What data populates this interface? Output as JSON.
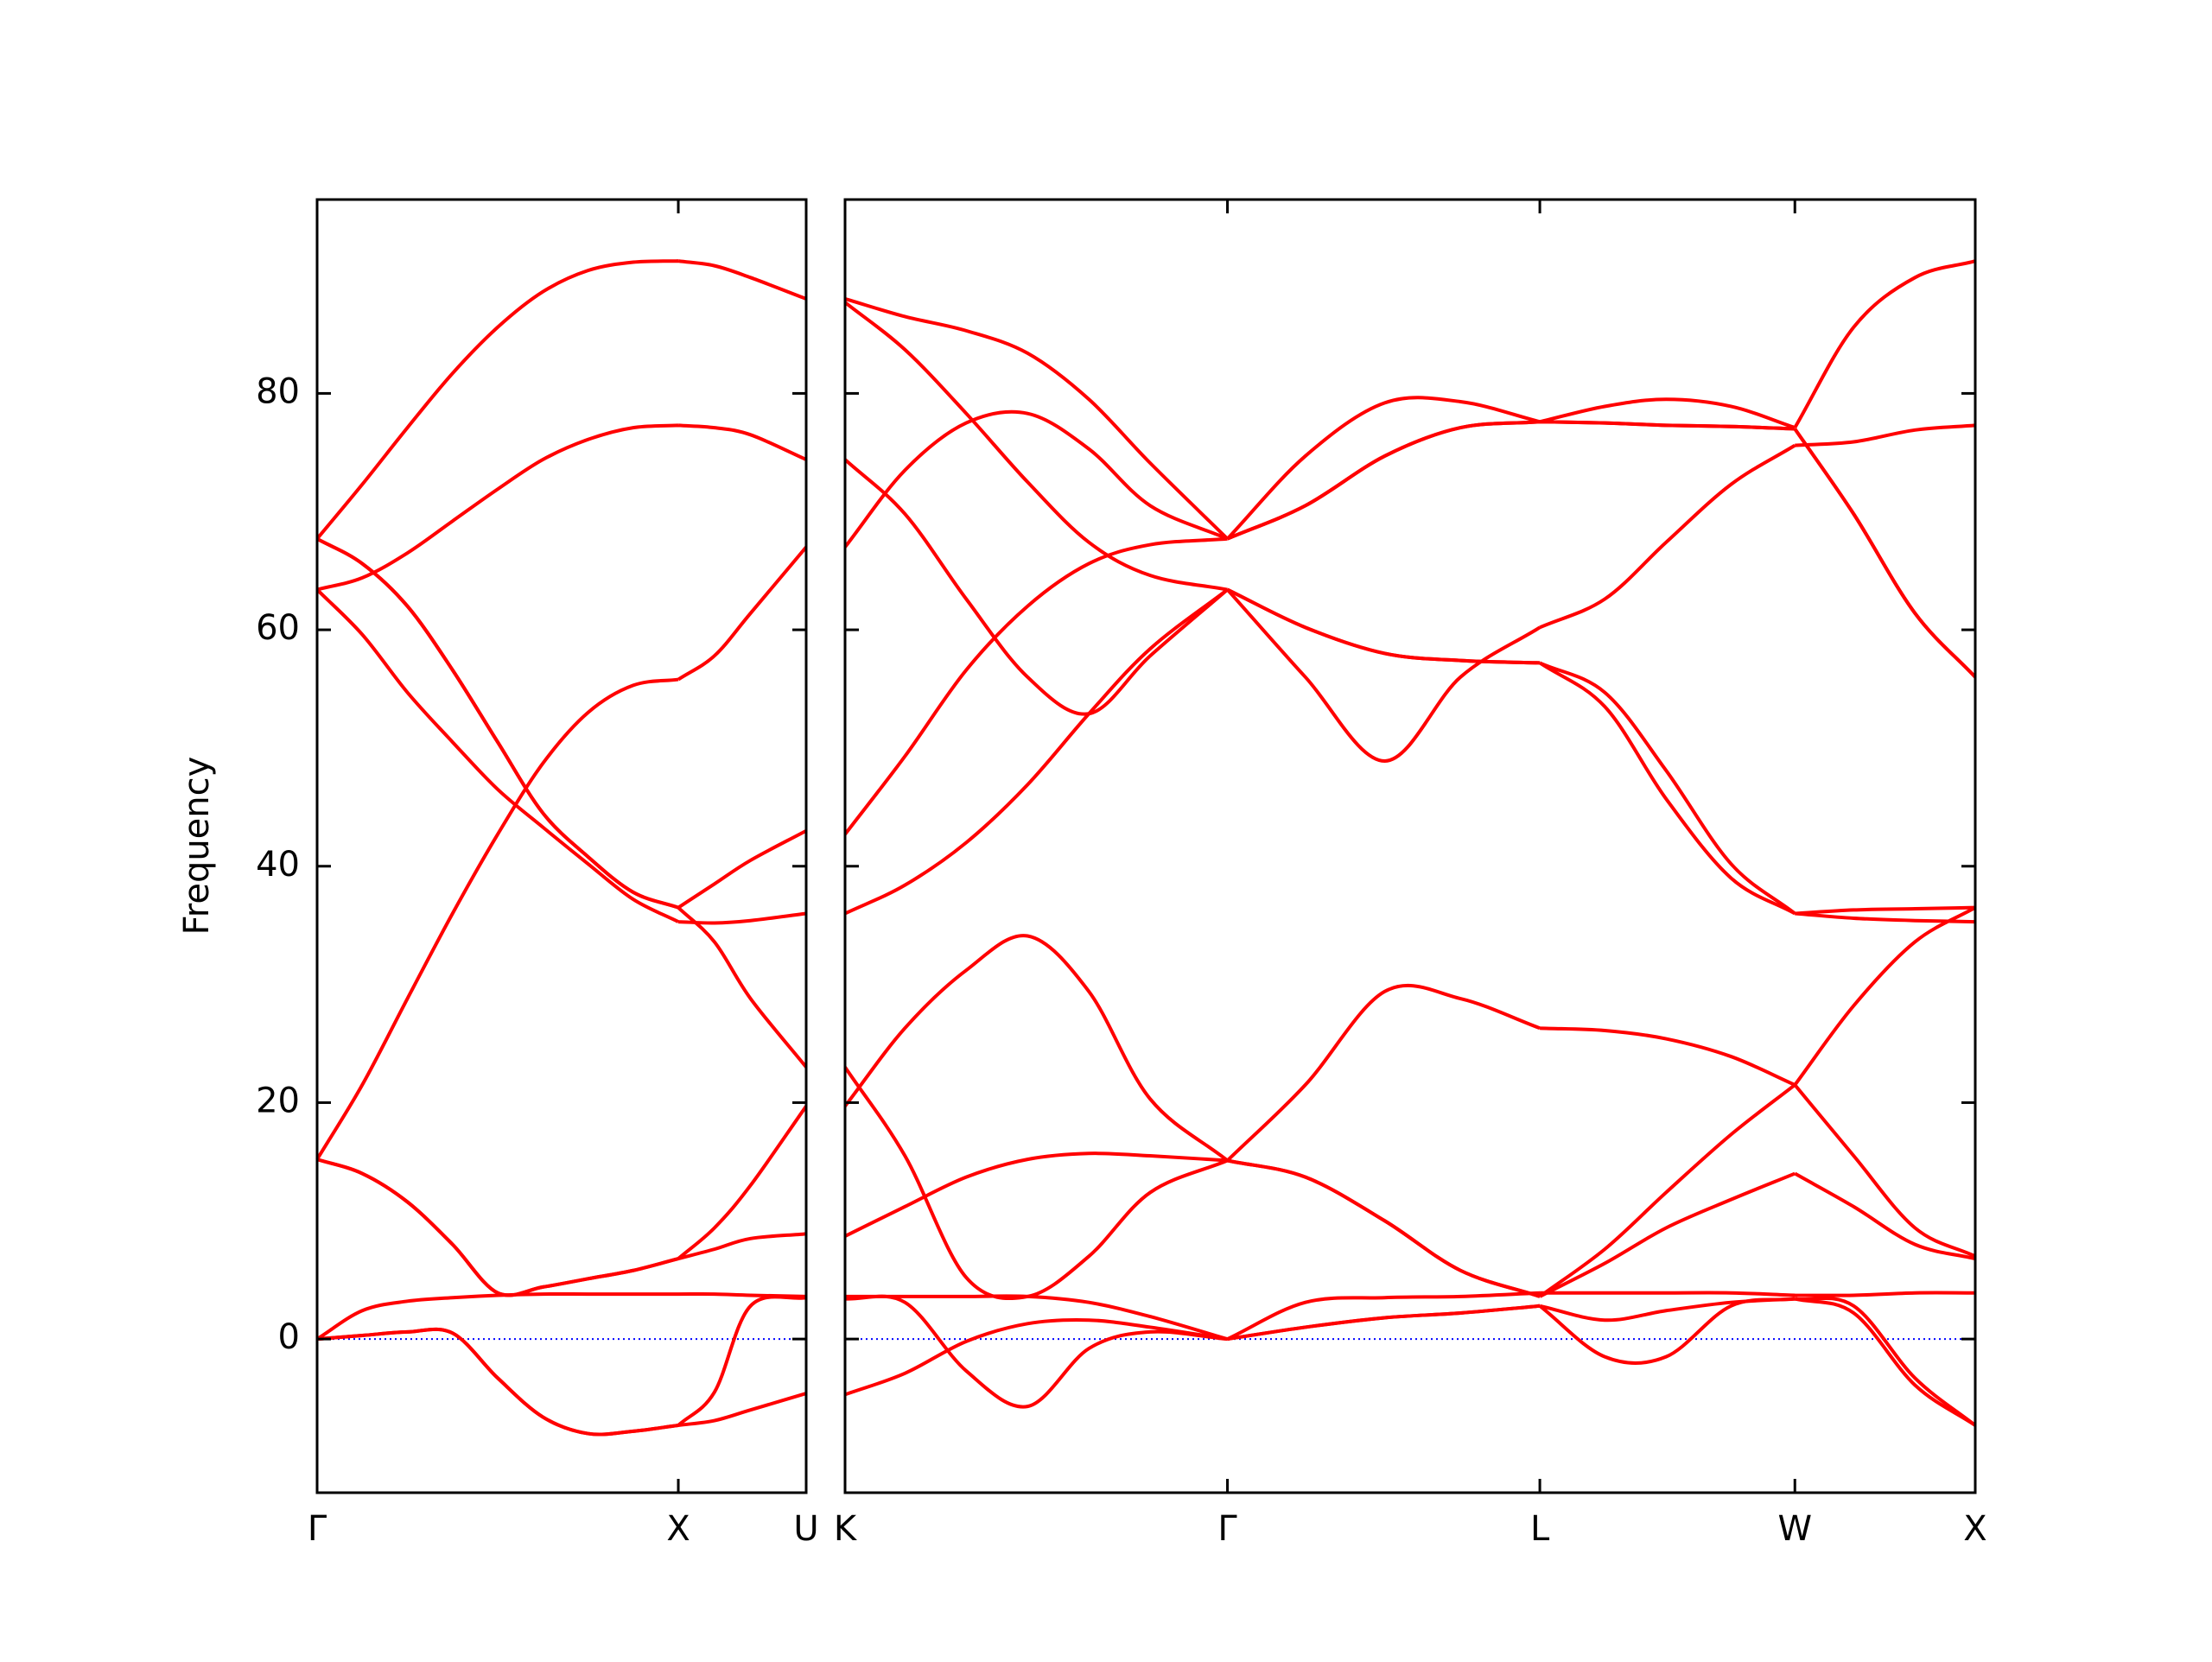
{
  "chart_data": [
    {
      "type": "line",
      "ylabel": "Frequency",
      "xlim": [
        0,
        1.354
      ],
      "ylim": [
        -13,
        96.4
      ],
      "yticks": [
        0,
        20,
        40,
        60,
        80
      ],
      "xticks": [
        {
          "value": 0,
          "label": "Γ"
        },
        {
          "value": 1,
          "label": "X"
        },
        {
          "value": 1.354,
          "label": "U"
        }
      ],
      "hline": {
        "value": 0,
        "color": "#0000ff"
      },
      "x": [
        0,
        0.125,
        0.25,
        0.375,
        0.5,
        0.625,
        0.75,
        0.875,
        1,
        1.1,
        1.2,
        1.354
      ],
      "series": [
        {
          "color": "#ff0000",
          "values": [
            0,
            0.3,
            0.6,
            0.5,
            -3.3,
            -6.6,
            -8,
            -7.8,
            -7.3,
            -6.9,
            -6,
            -4.6
          ]
        },
        {
          "color": "#ff0000",
          "values": [
            0,
            2.4,
            3.2,
            3.5,
            3.7,
            3.8,
            3.8,
            3.8,
            3.8,
            3.8,
            3.7,
            3.6
          ]
        },
        {
          "color": "#ff0000",
          "values": [
            0,
            0.3,
            0.6,
            0.5,
            -3.3,
            -6.6,
            -8,
            -7.8,
            -7.3,
            -4.5,
            2.8,
            3.5
          ]
        },
        {
          "color": "#ff0000",
          "values": [
            15.2,
            14,
            11.6,
            8,
            3.9,
            4.4,
            5.1,
            5.8,
            6.8,
            7.6,
            8.5,
            8.9
          ]
        },
        {
          "color": "#ff0000",
          "values": [
            15.2,
            14,
            11.6,
            8,
            3.9,
            4.4,
            5.1,
            5.8,
            6.8,
            9.4,
            13,
            19.7
          ]
        },
        {
          "color": "#ff0000",
          "values": [
            15.2,
            21.5,
            28.8,
            36,
            42.7,
            48.7,
            53,
            55.3,
            55.8,
            57.8,
            61.4,
            67
          ]
        },
        {
          "color": "#ff0000",
          "values": [
            67.7,
            65.6,
            62,
            56.6,
            50.5,
            44.5,
            40.8,
            37.8,
            36.5,
            33.6,
            28.8,
            23
          ]
        },
        {
          "color": "#ff0000",
          "values": [
            63.4,
            59.6,
            54.7,
            50.5,
            46.5,
            43.3,
            40.2,
            37.2,
            35.3,
            35.2,
            35.4,
            36
          ]
        },
        {
          "color": "#ff0000",
          "values": [
            67.7,
            65.6,
            62,
            56.6,
            50.5,
            44.5,
            40.8,
            37.8,
            36.5,
            38.5,
            40.5,
            43
          ]
        },
        {
          "color": "#ff0000",
          "values": [
            63.4,
            64.4,
            66.5,
            69.2,
            71.9,
            74.4,
            76.1,
            77.1,
            77.3,
            77.1,
            76.5,
            74.4
          ]
        },
        {
          "color": "#ff0000",
          "values": [
            67.7,
            72.3,
            77.1,
            81.7,
            85.6,
            88.6,
            90.4,
            91.1,
            91.2,
            90.8,
            89.8,
            88
          ]
        }
      ]
    },
    {
      "type": "line",
      "show_ytick_labels": false,
      "xlim": [
        1.354,
        4.487
      ],
      "ylim": [
        -13,
        96.4
      ],
      "yticks": [
        0,
        20,
        40,
        60,
        80
      ],
      "xticks": [
        {
          "value": 1.354,
          "label": "K"
        },
        {
          "value": 2.414,
          "label": "Γ"
        },
        {
          "value": 3.28,
          "label": "L"
        },
        {
          "value": 3.987,
          "label": "W"
        },
        {
          "value": 4.487,
          "label": "X"
        }
      ],
      "hline": {
        "value": 0,
        "color": "#0000ff"
      },
      "x": [
        1.354,
        1.52,
        1.69,
        1.86,
        2.03,
        2.2,
        2.414,
        2.63,
        2.85,
        3.06,
        3.28,
        3.46,
        3.63,
        3.81,
        3.987,
        4.15,
        4.32,
        4.487
      ],
      "series": [
        {
          "color": "#ff0000",
          "values": [
            88,
            86.5,
            85.3,
            83.4,
            79.5,
            74.1,
            67.7,
            74.7,
            79.2,
            79.3,
            77.6,
            78.9,
            79.5,
            78.9,
            77.1,
            85.6,
            89.8,
            91.2
          ]
        },
        {
          "color": "#ff0000",
          "values": [
            87.7,
            83.7,
            78.3,
            72.5,
            67.4,
            64.6,
            63.4,
            56,
            48.9,
            56,
            60.2,
            62.6,
            67.4,
            72.3,
            75.6,
            75.9,
            76.9,
            77.3
          ]
        },
        {
          "color": "#ff0000",
          "values": [
            74.4,
            69.8,
            62.6,
            56,
            52.9,
            57.8,
            63.4,
            60.2,
            58,
            57.4,
            57.2,
            53.5,
            45.7,
            39,
            36,
            36.3,
            36.4,
            36.5
          ]
        },
        {
          "color": "#ff0000",
          "values": [
            67,
            73.5,
            77.5,
            78.3,
            75.3,
            70.5,
            67.7,
            70.5,
            74.7,
            77.1,
            77.6,
            77.5,
            77.3,
            77.2,
            77,
            69.8,
            61.4,
            56
          ]
        },
        {
          "color": "#ff0000",
          "values": [
            42.7,
            49.3,
            56.6,
            62,
            65.6,
            67.2,
            67.7,
            70.5,
            74.7,
            77.1,
            77.6,
            77.5,
            77.3,
            77.2,
            77,
            69.8,
            61.4,
            56
          ]
        },
        {
          "color": "#ff0000",
          "values": [
            36,
            38.4,
            42,
            46.9,
            52.9,
            58.4,
            63.4,
            60.2,
            58,
            57.4,
            57.2,
            54.7,
            48.1,
            40.2,
            36,
            35.6,
            35.4,
            35.3
          ]
        },
        {
          "color": "#ff0000",
          "values": [
            19.7,
            26.3,
            31.2,
            34.1,
            29.4,
            20.3,
            15.1,
            21.5,
            29.4,
            28.8,
            26.3,
            26.1,
            25.4,
            23.9,
            21.5,
            15.5,
            9.4,
            7
          ]
        },
        {
          "color": "#ff0000",
          "values": [
            23,
            15.5,
            5.2,
            3.6,
            7,
            12.4,
            15.1,
            13.7,
            10,
            5.8,
            3.6,
            7.6,
            12.4,
            17.3,
            21.5,
            28.2,
            33.6,
            36.5
          ]
        },
        {
          "color": "#ff0000",
          "values": [
            8.7,
            11.2,
            13.7,
            15.2,
            15.7,
            15.5,
            15.1,
            13.7,
            10,
            5.8,
            3.6,
            6.4,
            9.4,
            11.8,
            14,
            11.2,
            8,
            6.8
          ]
        },
        {
          "color": "#ff0000",
          "values": [
            3.6,
            3.6,
            3.6,
            3.6,
            3.1,
            1.9,
            0,
            3.1,
            3.5,
            3.6,
            3.9,
            3.9,
            3.9,
            3.9,
            3.7,
            3.7,
            3.9,
            3.9
          ]
        },
        {
          "color": "#ff0000",
          "values": [
            3.4,
            3.1,
            -2.7,
            -5.7,
            -0.8,
            0.6,
            0,
            1,
            1.8,
            2.2,
            2.8,
            -1.5,
            -1.5,
            2.8,
            3.4,
            2.8,
            -3.3,
            -7.3
          ]
        },
        {
          "color": "#ff0000",
          "values": [
            -4.7,
            -2.9,
            -0.2,
            1.3,
            1.6,
            1,
            0,
            1,
            1.8,
            2.2,
            2.8,
            1.6,
            2.4,
            3.1,
            3.4,
            2.2,
            -3.9,
            -7.3
          ]
        }
      ]
    }
  ]
}
